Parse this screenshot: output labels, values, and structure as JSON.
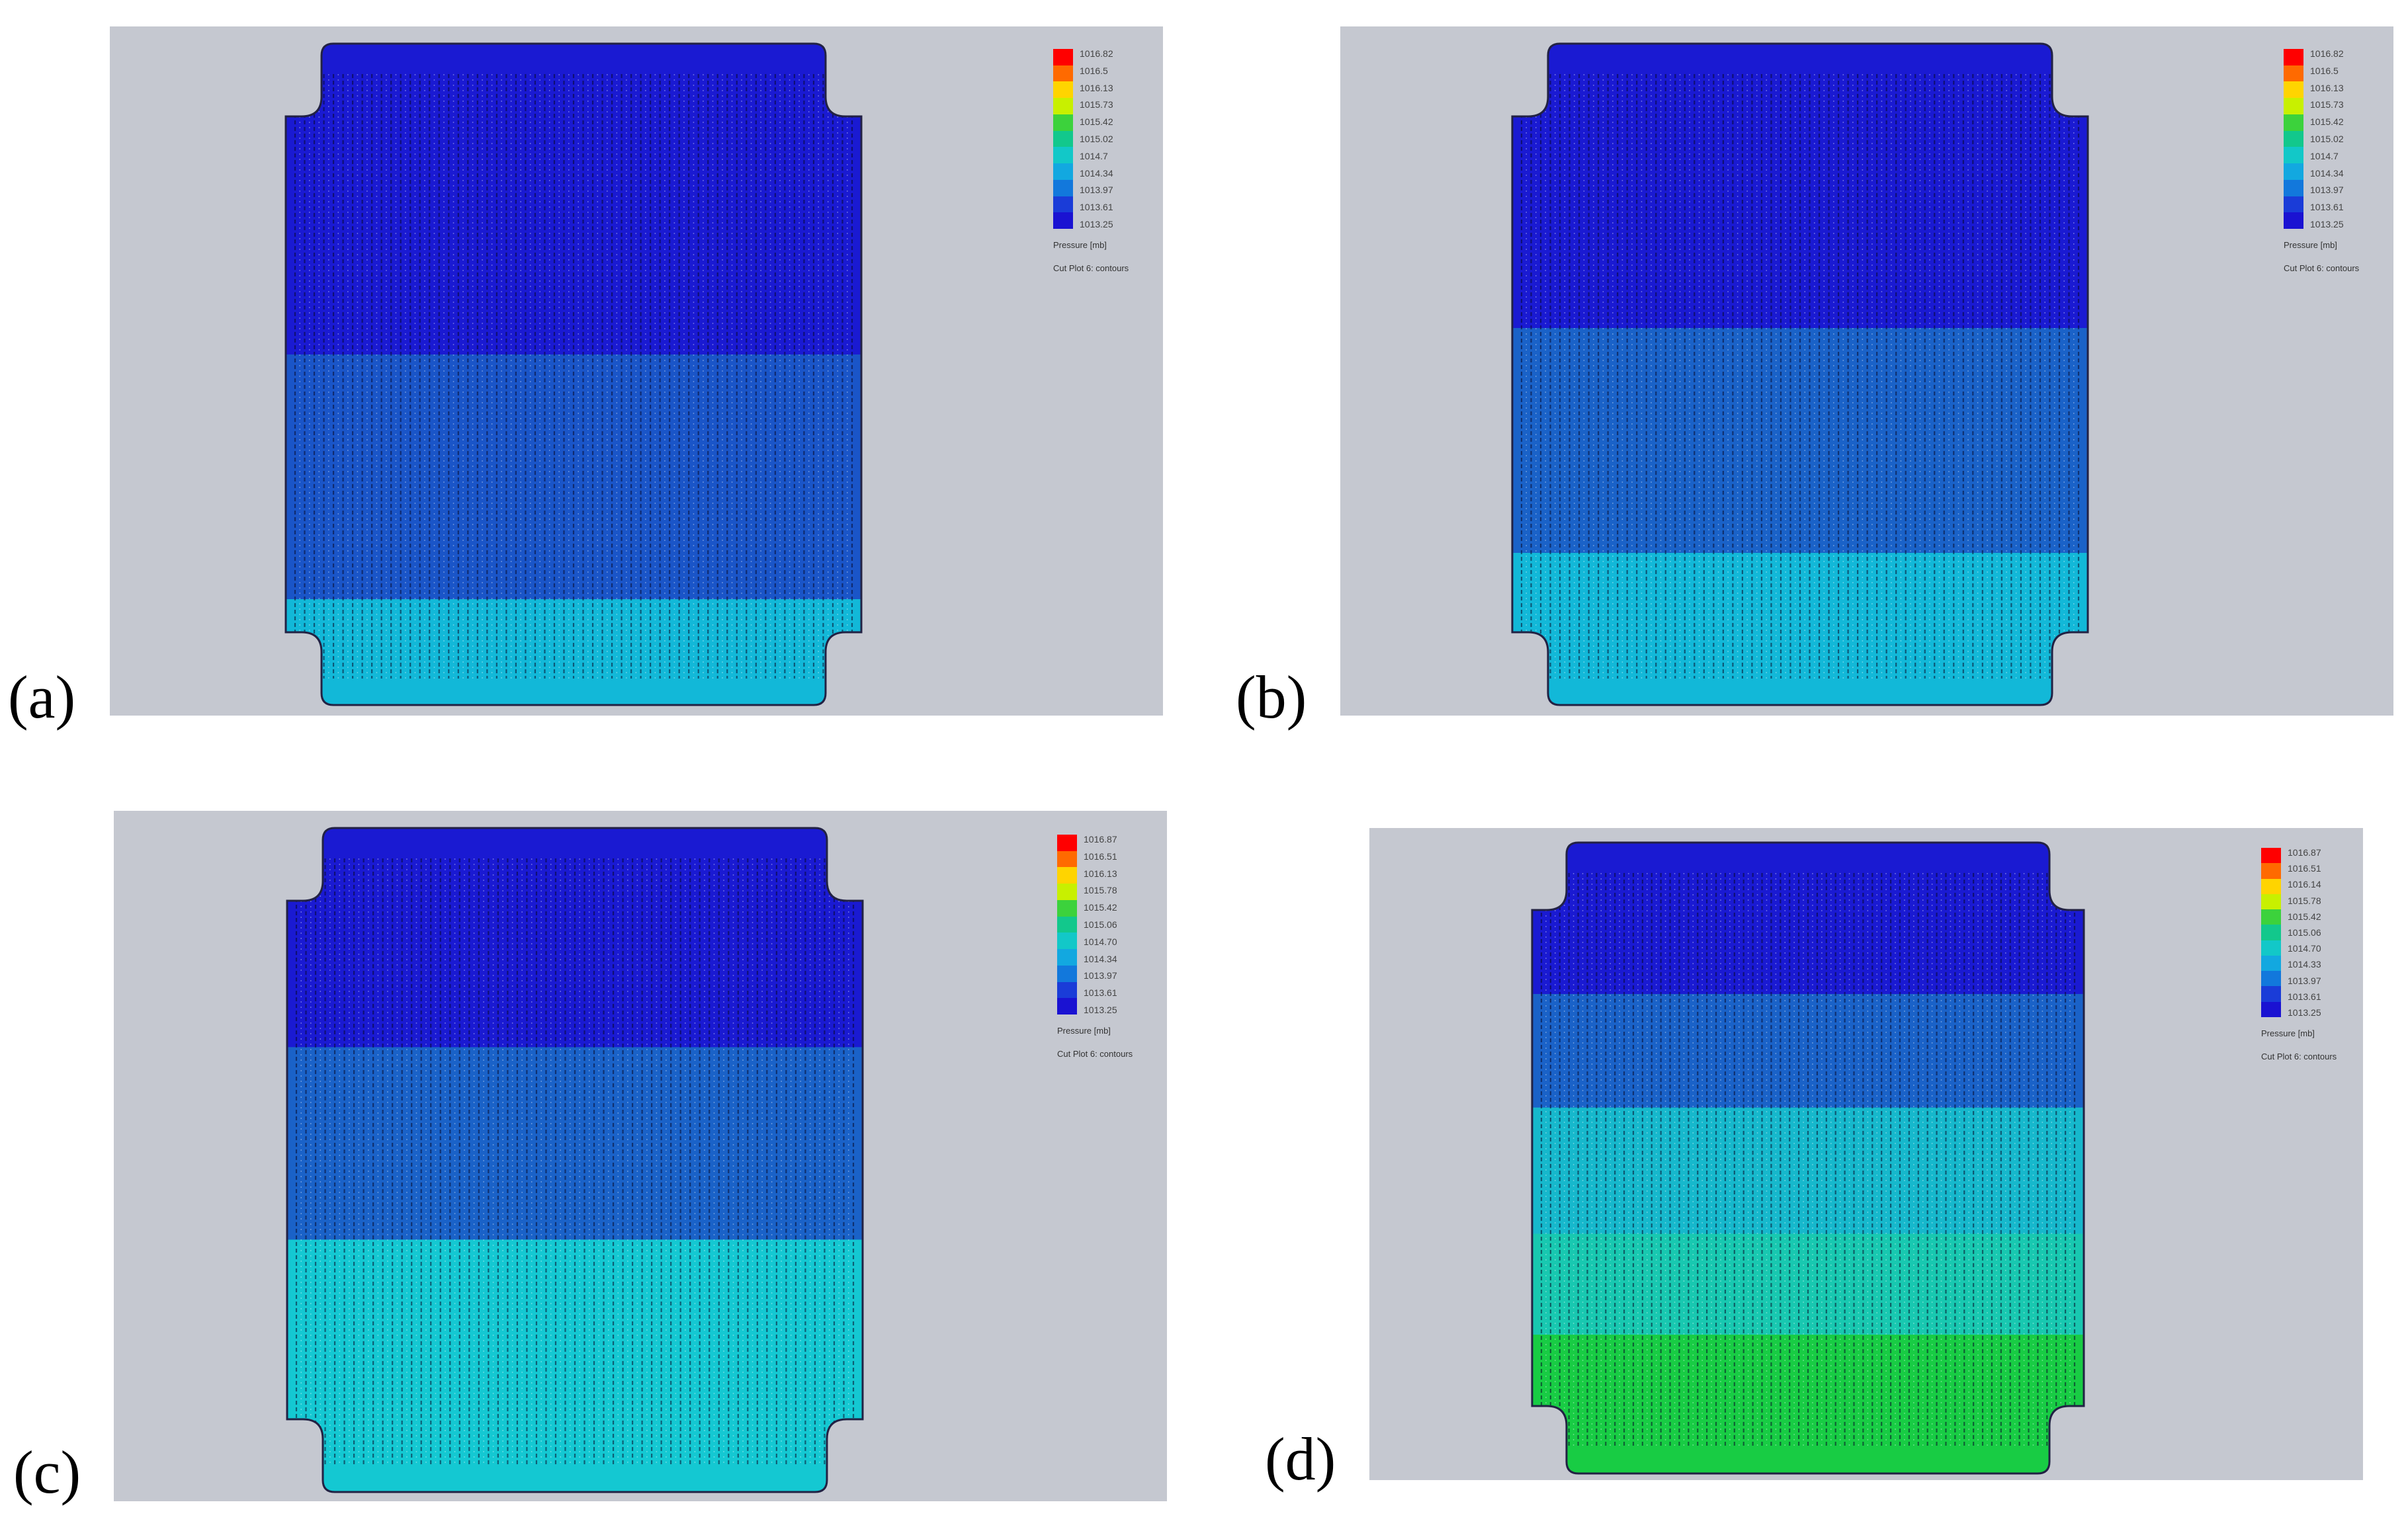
{
  "panels": [
    {
      "id": "a",
      "label": "(a)",
      "legend": {
        "ticks": [
          "1016.82",
          "1016.5",
          "1016.13",
          "1015.73",
          "1015.42",
          "1015.02",
          "1014.7",
          "1014.34",
          "1013.97",
          "1013.61",
          "1013.25"
        ],
        "title": "Pressure [mb]",
        "subtitle": "Cut Plot 6: contours"
      },
      "bands": [
        {
          "color": "#1a1ad2",
          "from": 0.0,
          "to": 0.47
        },
        {
          "color": "#1a55c8",
          "from": 0.47,
          "to": 0.84
        },
        {
          "color": "#12b8d8",
          "from": 0.84,
          "to": 1.0
        }
      ]
    },
    {
      "id": "b",
      "label": "(b)",
      "legend": {
        "ticks": [
          "1016.82",
          "1016.5",
          "1016.13",
          "1015.73",
          "1015.42",
          "1015.02",
          "1014.7",
          "1014.34",
          "1013.97",
          "1013.61",
          "1013.25"
        ],
        "title": "Pressure [mb]",
        "subtitle": "Cut Plot 6: contours"
      },
      "bands": [
        {
          "color": "#1a1ad2",
          "from": 0.0,
          "to": 0.43
        },
        {
          "color": "#1a62c8",
          "from": 0.43,
          "to": 0.77
        },
        {
          "color": "#12b8d8",
          "from": 0.77,
          "to": 1.0
        }
      ]
    },
    {
      "id": "c",
      "label": "(c)",
      "legend": {
        "ticks": [
          "1016.87",
          "1016.51",
          "1016.13",
          "1015.78",
          "1015.42",
          "1015.06",
          "1014.70",
          "1014.34",
          "1013.97",
          "1013.61",
          "1013.25"
        ],
        "title": "Pressure [mb]",
        "subtitle": "Cut Plot 6: contours"
      },
      "bands": [
        {
          "color": "#1a1ad2",
          "from": 0.0,
          "to": 0.33
        },
        {
          "color": "#1a62c8",
          "from": 0.33,
          "to": 0.62
        },
        {
          "color": "#14c8d2",
          "from": 0.62,
          "to": 1.0
        }
      ]
    },
    {
      "id": "d",
      "label": "(d)",
      "legend": {
        "ticks": [
          "1016.87",
          "1016.51",
          "1016.14",
          "1015.78",
          "1015.42",
          "1015.06",
          "1014.70",
          "1014.33",
          "1013.97",
          "1013.61",
          "1013.25"
        ],
        "title": "Pressure [mb]",
        "subtitle": "Cut Plot 6: contours"
      },
      "bands": [
        {
          "color": "#1a1ad2",
          "from": 0.0,
          "to": 0.24
        },
        {
          "color": "#1a62c8",
          "from": 0.24,
          "to": 0.42
        },
        {
          "color": "#16b8cc",
          "from": 0.42,
          "to": 0.62
        },
        {
          "color": "#18c8b0",
          "from": 0.62,
          "to": 0.78
        },
        {
          "color": "#18cc44",
          "from": 0.78,
          "to": 1.0
        }
      ]
    }
  ],
  "colors": {
    "panel_background": "#c5c8d0",
    "legend_scale": [
      "#ff0000",
      "#ff6a00",
      "#ffd400",
      "#c8f000",
      "#3cd23c",
      "#12c88c",
      "#12c8c8",
      "#12a8e0",
      "#1278dc",
      "#1a3cd8",
      "#1a12d2"
    ]
  }
}
